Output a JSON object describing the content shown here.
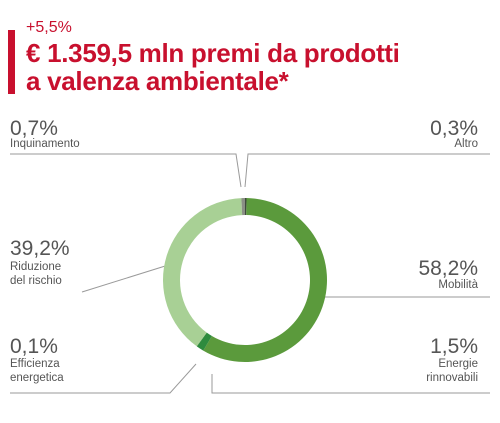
{
  "header": {
    "kicker": "+5,5%",
    "title": "€ 1.359,5 mln premi da prodotti\na valenza ambientale*"
  },
  "colors": {
    "accent": "#c8102e",
    "text": "#555555",
    "leader": "#9a9a9a"
  },
  "chart_data": {
    "type": "pie",
    "variant": "donut",
    "unit": "%",
    "slices": [
      {
        "label": "Altro",
        "value": 0.3,
        "display": "0,3%",
        "color": "#3f4a3c"
      },
      {
        "label": "Mobilità",
        "value": 58.2,
        "display": "58,2%",
        "color": "#5b9a3c"
      },
      {
        "label": "Energie\nrinnovabili",
        "value": 1.5,
        "display": "1,5%",
        "color": "#2e8b3e"
      },
      {
        "label": "Efficienza\nenergetica",
        "value": 0.1,
        "display": "0,1%",
        "color": "#8fbf78"
      },
      {
        "label": "Riduzione\ndel rischio",
        "value": 39.2,
        "display": "39,2%",
        "color": "#a8d095"
      },
      {
        "label": "Inquinamento",
        "value": 0.7,
        "display": "0,7%",
        "color": "#8a8f85"
      }
    ]
  }
}
